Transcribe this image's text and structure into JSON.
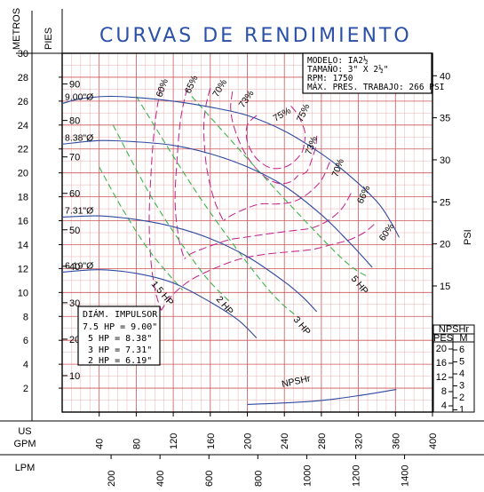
{
  "chart_data": {
    "type": "line",
    "title": "CURVAS DE RENDIMIENTO",
    "specs": [
      "MODELO: IA2½",
      "TAMAÑO: 3\" X 2½\"",
      "RPM: 1750",
      "MÁX. PRES. TRABAJO: 266 PSI"
    ],
    "axes": {
      "metros": {
        "label": "METROS",
        "range": [
          0,
          30
        ],
        "ticks": [
          2,
          4,
          6,
          8,
          10,
          12,
          14,
          16,
          18,
          20,
          22,
          24,
          26,
          28,
          30
        ]
      },
      "pies": {
        "label": "PIES",
        "range": [
          0,
          98.4
        ],
        "ticks": [
          10,
          20,
          30,
          40,
          50,
          60,
          70,
          80,
          90
        ]
      },
      "psi": {
        "label": "PSI",
        "range": [
          0,
          42.6
        ],
        "ticks": [
          15,
          20,
          25,
          30,
          35,
          40
        ]
      },
      "gpm": {
        "label": "US GPM",
        "range": [
          0,
          400
        ],
        "ticks": [
          40,
          80,
          120,
          160,
          200,
          240,
          280,
          320,
          360,
          400
        ]
      },
      "lpm": {
        "label": "LPM",
        "range": [
          0,
          1514
        ],
        "ticks": [
          200,
          400,
          600,
          800,
          1000,
          1200,
          1400
        ]
      }
    },
    "head_curves": [
      {
        "label": "9.00\"Ø",
        "x": [
          0,
          20,
          50,
          80,
          120,
          160,
          200,
          240,
          280,
          310,
          340,
          355,
          364
        ],
        "y": [
          25.8,
          26.2,
          26.4,
          26.3,
          26.0,
          25.5,
          24.8,
          23.5,
          21.6,
          19.8,
          17.6,
          15.9,
          14.6
        ]
      },
      {
        "label": "8.38\"Ø",
        "x": [
          0,
          40,
          80,
          120,
          160,
          200,
          240,
          280,
          310,
          335
        ],
        "y": [
          22.4,
          22.7,
          22.6,
          22.3,
          21.6,
          20.5,
          18.9,
          16.5,
          14.2,
          12.1
        ]
      },
      {
        "label": "7.31\"Ø",
        "x": [
          0,
          40,
          80,
          120,
          160,
          200,
          240,
          260,
          275
        ],
        "y": [
          16.3,
          16.4,
          16.1,
          15.5,
          14.5,
          13.0,
          10.9,
          9.6,
          8.4
        ]
      },
      {
        "label": "6.19\"Ø",
        "x": [
          0,
          40,
          80,
          120,
          160,
          190,
          210
        ],
        "y": [
          11.7,
          11.9,
          11.6,
          10.8,
          9.2,
          7.7,
          6.2
        ]
      }
    ],
    "hp_curves": [
      {
        "label": "1.5 HP",
        "x": [
          40,
          65,
          95,
          130
        ],
        "y": [
          20.5,
          17.0,
          13.4,
          10.2
        ]
      },
      {
        "label": "2 HP",
        "x": [
          55,
          100,
          150,
          180
        ],
        "y": [
          24.0,
          17.5,
          11.8,
          9.3
        ]
      },
      {
        "label": "3 HP",
        "x": [
          80,
          150,
          220,
          255
        ],
        "y": [
          26.4,
          17.8,
          10.5,
          7.9
        ]
      },
      {
        "label": "5 HP",
        "x": [
          140,
          220,
          300,
          330
        ],
        "y": [
          26.4,
          19.5,
          13.0,
          11.3
        ]
      }
    ],
    "eff_curves": [
      {
        "label": "60%",
        "x": [
          106,
          100,
          96,
          94,
          96,
          101,
          107
        ],
        "y": [
          27.1,
          24.0,
          20.0,
          16.0,
          12.5,
          10.0,
          8.5
        ]
      },
      {
        "label": "65%",
        "x": [
          135,
          128,
          124,
          122,
          126,
          132
        ],
        "y": [
          27.1,
          24.5,
          21.0,
          17.5,
          14.5,
          12.8
        ]
      },
      {
        "label": "70%",
        "x": [
          160,
          155,
          153,
          156,
          164,
          174
        ],
        "y": [
          27.1,
          25.5,
          23.5,
          20.5,
          17.8,
          16.0
        ]
      },
      {
        "label": "73%",
        "x": [
          184,
          182,
          185,
          195,
          208,
          222,
          236,
          248,
          255
        ],
        "y": [
          26.8,
          25.5,
          24.0,
          22.0,
          20.5,
          19.5,
          19.1,
          19.3,
          19.8
        ]
      },
      {
        "label": "75%",
        "x": [
          210,
          200,
          200,
          210,
          226,
          244,
          258,
          262
        ],
        "y": [
          24.8,
          24.0,
          22.6,
          21.2,
          20.4,
          20.6,
          21.6,
          22.6
        ]
      },
      {
        "label": "75%",
        "x": [
          247,
          255,
          262,
          262
        ],
        "y": [
          25.6,
          24.8,
          23.5,
          22.6
        ]
      },
      {
        "label": "73%",
        "x": [
          275,
          274,
          270,
          265,
          258
        ],
        "y": [
          23.1,
          22.2,
          21.2,
          20.2,
          19.8
        ]
      },
      {
        "label": "70%",
        "x": [
          289,
          280,
          266,
          250,
          232,
          214,
          198,
          184,
          174
        ],
        "y": [
          20.9,
          19.4,
          18.3,
          17.6,
          17.4,
          17.4,
          17.0,
          16.5,
          16.0
        ]
      },
      {
        "label": "66%",
        "x": [
          312,
          302,
          287,
          270,
          252,
          232,
          213,
          196,
          180,
          164,
          150,
          138,
          132
        ],
        "y": [
          18.3,
          17.0,
          16.0,
          15.4,
          15.2,
          15.0,
          14.8,
          14.6,
          14.4,
          14.0,
          13.6,
          13.2,
          12.8
        ]
      },
      {
        "label": "60%",
        "x": [
          337,
          326,
          310,
          291,
          270,
          246,
          220,
          192,
          164,
          138,
          118,
          107
        ],
        "y": [
          15.7,
          15.0,
          14.4,
          14.0,
          13.6,
          13.4,
          13.2,
          12.8,
          12.0,
          11.0,
          9.7,
          8.5
        ]
      }
    ],
    "npshr": {
      "label": "NPSHr",
      "x": [
        200,
        240,
        280,
        320,
        361
      ],
      "y_ft": [
        2.1,
        2.5,
        3.2,
        4.5,
        6.2
      ],
      "scale": {
        "title": "NPSHr",
        "pies": [
          "20",
          "16",
          "12",
          "8",
          "4"
        ],
        "m": [
          "6",
          "5",
          "4",
          "3",
          "2",
          "1"
        ]
      }
    },
    "legend": {
      "title": "DIÁM. IMPULSOR",
      "items": [
        "7.5  HP = 9.00\"",
        "5 HP = 8.38\"",
        "3 HP = 7.31\"",
        "2 HP = 6.19\""
      ]
    },
    "grid": true
  }
}
